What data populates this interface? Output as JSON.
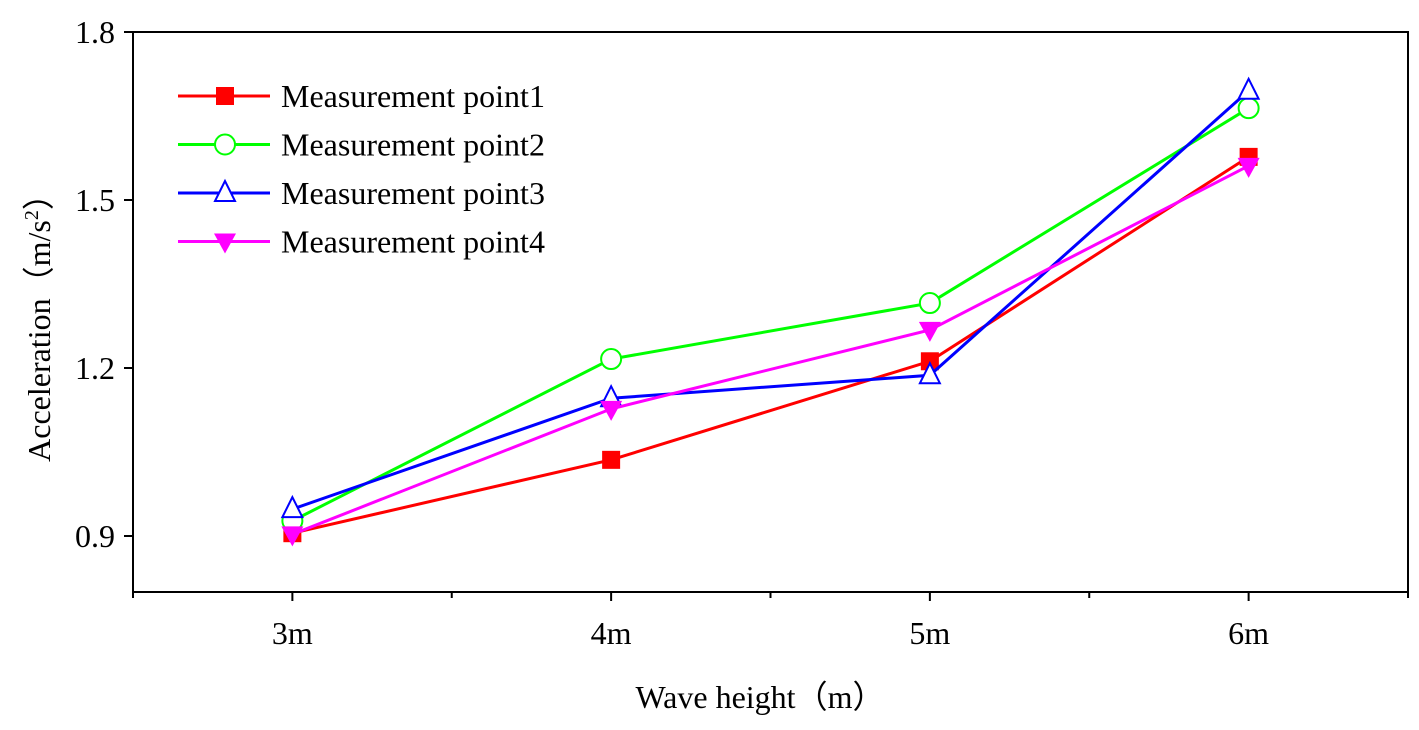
{
  "chart_data": {
    "type": "line",
    "title": "",
    "xlabel": "Wave height（m）",
    "ylabel": "Acceleration（m/s",
    "ylabel_sup": "2",
    "ylabel_end": "）",
    "categories": [
      "3m",
      "4m",
      "5m",
      "6m"
    ],
    "x": [
      3,
      4,
      5,
      6
    ],
    "xlim": [
      2.5,
      6.5
    ],
    "ylim": [
      0.8,
      1.8
    ],
    "yticks": [
      0.9,
      1.2,
      1.5,
      1.8
    ],
    "ytick_labels": [
      "0.9",
      "1.2",
      "1.5",
      "1.8"
    ],
    "grid": false,
    "legend_placement": "top-left",
    "series": [
      {
        "name": "Measurement point1",
        "values": [
          0.905,
          1.036,
          1.212,
          1.577
        ],
        "color": "#ff0000",
        "marker": "square-filled"
      },
      {
        "name": "Measurement point2",
        "values": [
          0.927,
          1.216,
          1.316,
          1.664
        ],
        "color": "#00ff00",
        "marker": "circle-open"
      },
      {
        "name": "Measurement point3",
        "values": [
          0.948,
          1.146,
          1.187,
          1.695
        ],
        "color": "#0000ff",
        "marker": "triangle-up-open"
      },
      {
        "name": "Measurement point4",
        "values": [
          0.903,
          1.127,
          1.268,
          1.561
        ],
        "color": "#ff00ff",
        "marker": "triangle-down-filled"
      }
    ]
  }
}
